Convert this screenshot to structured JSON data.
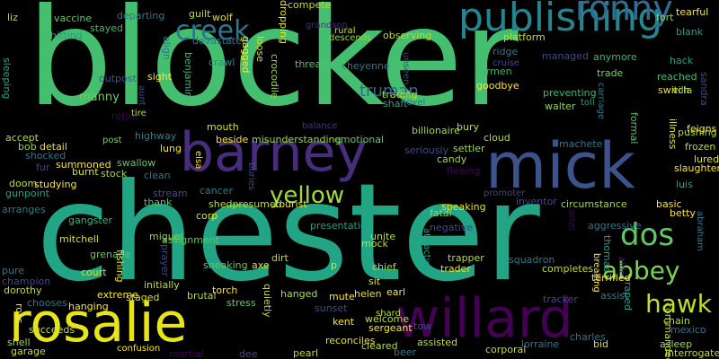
{
  "word_cloud": {
    "background": "#000000",
    "words": [
      {
        "text": "blocker",
        "color": "#44bf70"
      },
      {
        "text": "chester",
        "color": "#21a585"
      },
      {
        "text": "mick",
        "color": "#3b528b"
      },
      {
        "text": "barney",
        "color": "#472d7b"
      },
      {
        "text": "rosalie",
        "color": "#e7e419"
      },
      {
        "text": "willard",
        "color": "#440154"
      },
      {
        "text": "publishing",
        "color": "#25858e"
      },
      {
        "text": "ronny",
        "color": "#2f6c8e"
      },
      {
        "text": "dos",
        "color": "#5ec962"
      },
      {
        "text": "abbey",
        "color": "#7ad151"
      },
      {
        "text": "hawk",
        "color": "#bddf26"
      },
      {
        "text": "creek",
        "color": "#2a788e"
      },
      {
        "text": "yellow",
        "color": "#a0da39"
      },
      {
        "text": "truman",
        "color": "#31688e"
      },
      {
        "text": "vaccine",
        "color": "#5ec962"
      },
      {
        "text": "departing",
        "color": "#2a788e"
      },
      {
        "text": "guilt",
        "color": "#c2df23"
      },
      {
        "text": "wolf",
        "color": "#d8e219"
      },
      {
        "text": "compete",
        "color": "#bddf26"
      },
      {
        "text": "liz",
        "color": "#b5de2b"
      },
      {
        "text": "hitting",
        "color": "#1fa187"
      },
      {
        "text": "stayed",
        "color": "#35b779"
      },
      {
        "text": "rural",
        "color": "#d0e11c"
      },
      {
        "text": "fort",
        "color": "#8fd744"
      },
      {
        "text": "tearful",
        "color": "#fde725"
      },
      {
        "text": "grandson",
        "color": "#472d7b"
      },
      {
        "text": "threat",
        "color": "#52c569"
      },
      {
        "text": "descends",
        "color": "#8fd744"
      },
      {
        "text": "observing",
        "color": "#b5de2b"
      },
      {
        "text": "platform",
        "color": "#c2df23"
      },
      {
        "text": "ridge",
        "color": "#2a788e"
      },
      {
        "text": "cruise",
        "color": "#3e4989"
      },
      {
        "text": "blank",
        "color": "#1f9e89"
      },
      {
        "text": "sleeping",
        "color": "#1fa187"
      },
      {
        "text": "outpost",
        "color": "#38588c"
      },
      {
        "text": "manny",
        "color": "#6ccd5a"
      },
      {
        "text": "sight",
        "color": "#fde725"
      },
      {
        "text": "benjamin",
        "color": "#35b779"
      },
      {
        "text": "crocodile",
        "color": "#a0da39"
      },
      {
        "text": "crawl",
        "color": "#228d8d"
      },
      {
        "text": "cheyenne",
        "color": "#2a788e"
      },
      {
        "text": "unseen",
        "color": "#3e4989"
      },
      {
        "text": "trade",
        "color": "#7ad151"
      },
      {
        "text": "anymore",
        "color": "#35b779"
      },
      {
        "text": "hack",
        "color": "#1fa187"
      },
      {
        "text": "reached",
        "color": "#44bf70"
      },
      {
        "text": "switch",
        "color": "#e7e419"
      },
      {
        "text": "sandra",
        "color": "#3e4989"
      },
      {
        "text": "villa",
        "color": "#9bd93c"
      },
      {
        "text": "carmen",
        "color": "#35b779"
      },
      {
        "text": "goodbye",
        "color": "#fde725"
      },
      {
        "text": "trading",
        "color": "#b5de2b"
      },
      {
        "text": "shaft",
        "color": "#22a884"
      },
      {
        "text": "novel",
        "color": "#2a788e"
      },
      {
        "text": "walter",
        "color": "#8fd744"
      },
      {
        "text": "preventing",
        "color": "#35b779"
      },
      {
        "text": "toll",
        "color": "#1f9e89"
      },
      {
        "text": "carriage",
        "color": "#2a788e"
      },
      {
        "text": "feigns",
        "color": "#fde725"
      },
      {
        "text": "formal",
        "color": "#52c569"
      },
      {
        "text": "illness",
        "color": "#e7e419"
      },
      {
        "text": "pushing",
        "color": "#a0da39"
      },
      {
        "text": "retire",
        "color": "#440154"
      },
      {
        "text": "tire",
        "color": "#b5de2b"
      },
      {
        "text": "aunt",
        "color": "#3e4989"
      },
      {
        "text": "highway",
        "color": "#26828e"
      },
      {
        "text": "accept",
        "color": "#b5de2b"
      },
      {
        "text": "bob",
        "color": "#8fd744"
      },
      {
        "text": "detail",
        "color": "#e7e419"
      },
      {
        "text": "shocked",
        "color": "#2a788e"
      },
      {
        "text": "fur",
        "color": "#414487"
      },
      {
        "text": "summoned",
        "color": "#fde725"
      },
      {
        "text": "post",
        "color": "#7ad151"
      },
      {
        "text": "stock",
        "color": "#a0da39"
      },
      {
        "text": "swallow",
        "color": "#5ec962"
      },
      {
        "text": "lung",
        "color": "#fde725"
      },
      {
        "text": "clean",
        "color": "#2a788e"
      },
      {
        "text": "mouth",
        "color": "#d8e219"
      },
      {
        "text": "beside",
        "color": "#fde725"
      },
      {
        "text": "misunderstanding",
        "color": "#9bd93c"
      },
      {
        "text": "emotional",
        "color": "#5ec962"
      },
      {
        "text": "balance",
        "color": "#472d7b"
      },
      {
        "text": "billionaire",
        "color": "#a0da39"
      },
      {
        "text": "bury",
        "color": "#b5de2b"
      },
      {
        "text": "cloud",
        "color": "#b5de2b"
      },
      {
        "text": "seriously",
        "color": "#3e4989"
      },
      {
        "text": "settler",
        "color": "#a0da39"
      },
      {
        "text": "candy",
        "color": "#a0da39"
      },
      {
        "text": "fleeing",
        "color": "#440154"
      },
      {
        "text": "machete",
        "color": "#2a788e"
      },
      {
        "text": "frozen",
        "color": "#b5de2b"
      },
      {
        "text": "lured",
        "color": "#e7e419"
      },
      {
        "text": "slaughter",
        "color": "#fde725"
      },
      {
        "text": "luis",
        "color": "#1fa187"
      },
      {
        "text": "burnt",
        "color": "#d8e219"
      },
      {
        "text": "studying",
        "color": "#fde725"
      },
      {
        "text": "doom",
        "color": "#c2df23"
      },
      {
        "text": "gunpoint",
        "color": "#1fa187"
      },
      {
        "text": "elsa",
        "color": "#fde725"
      },
      {
        "text": "buries",
        "color": "#3e4989"
      },
      {
        "text": "stream",
        "color": "#3b528b"
      },
      {
        "text": "cancer",
        "color": "#2a788e"
      },
      {
        "text": "shedpresumed",
        "color": "#c2df23"
      },
      {
        "text": "tourist",
        "color": "#e7e419"
      },
      {
        "text": "presentation",
        "color": "#1fa187"
      },
      {
        "text": "fatal",
        "color": "#8fd744"
      },
      {
        "text": "speaking",
        "color": "#e7e419"
      },
      {
        "text": "promoter",
        "color": "#414487"
      },
      {
        "text": "inventor",
        "color": "#3e4989"
      },
      {
        "text": "circumstance",
        "color": "#a0da39"
      },
      {
        "text": "basic",
        "color": "#fde725"
      },
      {
        "text": "betty",
        "color": "#fde725"
      },
      {
        "text": "gangster",
        "color": "#35b779"
      },
      {
        "text": "arranges",
        "color": "#2a788e"
      },
      {
        "text": "thank",
        "color": "#52c569"
      },
      {
        "text": "corp",
        "color": "#e7e419"
      },
      {
        "text": "assignment",
        "color": "#5ec962"
      },
      {
        "text": "unite",
        "color": "#b5de2b"
      },
      {
        "text": "negative",
        "color": "#3e4989"
      },
      {
        "text": "attracting",
        "color": "#1fa187"
      },
      {
        "text": "cartel",
        "color": "#440154"
      },
      {
        "text": "aggressive",
        "color": "#2a788e"
      },
      {
        "text": "abraham",
        "color": "#2a788e"
      },
      {
        "text": "mitchell",
        "color": "#d8e219"
      },
      {
        "text": "grenade",
        "color": "#5ec962"
      },
      {
        "text": "court",
        "color": "#d8e219"
      },
      {
        "text": "miguel",
        "color": "#8fd744"
      },
      {
        "text": "mock",
        "color": "#c2df23"
      },
      {
        "text": "trapper",
        "color": "#b5de2b"
      },
      {
        "text": "thomas",
        "color": "#1fa187"
      },
      {
        "text": "aide",
        "color": "#472d7b"
      },
      {
        "text": "breaking",
        "color": "#fde725"
      },
      {
        "text": "pure",
        "color": "#2a788e"
      },
      {
        "text": "champion",
        "color": "#3e4989"
      },
      {
        "text": "dorothy",
        "color": "#c2df23"
      },
      {
        "text": "fishing",
        "color": "#e7e419"
      },
      {
        "text": "prayer",
        "color": "#3e4989"
      },
      {
        "text": "sneaking",
        "color": "#5ec962"
      },
      {
        "text": "axe",
        "color": "#e7e419"
      },
      {
        "text": "dirt",
        "color": "#c2df23"
      },
      {
        "text": "p",
        "color": "#e7e419"
      },
      {
        "text": "chief",
        "color": "#a0da39"
      },
      {
        "text": "trader",
        "color": "#e7e419"
      },
      {
        "text": "squadron",
        "color": "#2a788e"
      },
      {
        "text": "completes",
        "color": "#c2df23"
      },
      {
        "text": "initially",
        "color": "#c2df23"
      },
      {
        "text": "brutal",
        "color": "#b5de2b"
      },
      {
        "text": "torch",
        "color": "#fde725"
      },
      {
        "text": "sit",
        "color": "#e7e419"
      },
      {
        "text": "earl",
        "color": "#fde725"
      },
      {
        "text": "terrified",
        "color": "#fde725"
      },
      {
        "text": "raped",
        "color": "#1fa187"
      },
      {
        "text": "assist",
        "color": "#26828e"
      },
      {
        "text": "extreme",
        "color": "#fde725"
      },
      {
        "text": "staged",
        "color": "#d8e219"
      },
      {
        "text": "stress",
        "color": "#5ec962"
      },
      {
        "text": "hanged",
        "color": "#b5de2b"
      },
      {
        "text": "helen",
        "color": "#e7e419"
      },
      {
        "text": "mute",
        "color": "#fde725"
      },
      {
        "text": "tracker",
        "color": "#3e4989"
      },
      {
        "text": "chain",
        "color": "#b5de2b"
      },
      {
        "text": "chooses",
        "color": "#2a788e"
      },
      {
        "text": "hanging",
        "color": "#fde725"
      },
      {
        "text": "ross",
        "color": "#fde725"
      },
      {
        "text": "succeeds",
        "color": "#c2df23"
      },
      {
        "text": "shell",
        "color": "#a0da39"
      },
      {
        "text": "garage",
        "color": "#c2df23"
      },
      {
        "text": "quietly",
        "color": "#c2df23"
      },
      {
        "text": "sunset",
        "color": "#3e4989"
      },
      {
        "text": "kent",
        "color": "#fde725"
      },
      {
        "text": "welcome",
        "color": "#c2df23"
      },
      {
        "text": "sergeant",
        "color": "#fde725"
      },
      {
        "text": "shard",
        "color": "#b5de2b"
      },
      {
        "text": "tow",
        "color": "#3e4989"
      },
      {
        "text": "mexico",
        "color": "#2a788e"
      },
      {
        "text": "commanded",
        "color": "#c2df23"
      },
      {
        "text": "charles",
        "color": "#2a788e"
      },
      {
        "text": "bid",
        "color": "#d8e219"
      },
      {
        "text": "asleep",
        "color": "#a0da39"
      },
      {
        "text": "interrogates",
        "color": "#c2df23"
      },
      {
        "text": "confusion",
        "color": "#fde725"
      },
      {
        "text": "martial",
        "color": "#440154"
      },
      {
        "text": "dee",
        "color": "#3e4989"
      },
      {
        "text": "pearl",
        "color": "#c2df23"
      },
      {
        "text": "reconciles",
        "color": "#e7e419"
      },
      {
        "text": "cleared",
        "color": "#c2df23"
      },
      {
        "text": "beer",
        "color": "#2a788e"
      },
      {
        "text": "assisted",
        "color": "#c2df23"
      },
      {
        "text": "corporal",
        "color": "#c2df23"
      },
      {
        "text": "lorraine",
        "color": "#2a788e"
      },
      {
        "text": "devastated",
        "color": "#2a788e"
      },
      {
        "text": "gagged",
        "color": "#fde725"
      },
      {
        "text": "loose",
        "color": "#d8e219"
      },
      {
        "text": "dropping",
        "color": "#e7e419"
      },
      {
        "text": "managed",
        "color": "#3e4989"
      },
      {
        "text": "align",
        "color": "#2a788e"
      },
      {
        "text": "representing",
        "color": "#d8e219"
      }
    ]
  }
}
